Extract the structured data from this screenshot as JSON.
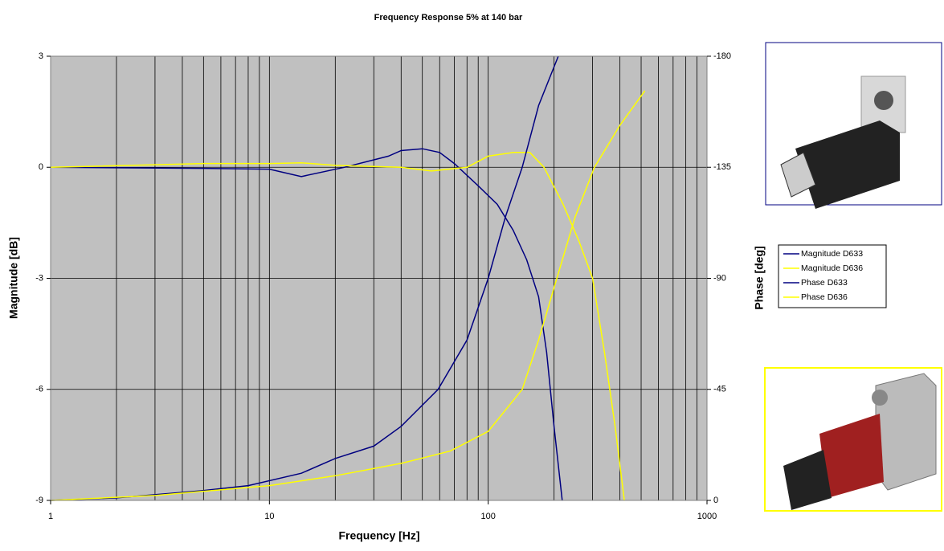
{
  "chart_data": {
    "type": "line",
    "title": "Frequency Response 5% at 140 bar",
    "x_label": "Frequency [Hz]",
    "y_label": "Magnitude [dB]",
    "y2_label": "Phase [deg]",
    "xscale": "log",
    "xlim": [
      1,
      1000
    ],
    "xticks": [
      1,
      10,
      100,
      1000
    ],
    "ylim": [
      -9,
      3
    ],
    "yticks": [
      -9,
      -6,
      -3,
      0,
      3
    ],
    "y2lim": [
      0,
      -180
    ],
    "y2ticks": [
      0,
      -45,
      -90,
      -135,
      -180
    ],
    "grid": true,
    "series": [
      {
        "name": "Magnitude D633",
        "color": "#000080",
        "x": [
          1,
          5,
          10,
          14,
          22,
          30,
          35,
          40,
          50,
          60,
          70,
          90,
          110,
          130,
          150,
          170,
          185,
          200,
          218
        ],
        "values": [
          0,
          -0.03,
          -0.05,
          -0.25,
          0,
          0.2,
          0.3,
          0.45,
          0.5,
          0.4,
          0.1,
          -0.5,
          -1,
          -1.7,
          -2.5,
          -3.5,
          -5,
          -7,
          -9
        ]
      },
      {
        "name": "Magnitude D636",
        "color": "#ffff00",
        "x": [
          1,
          5,
          10,
          14,
          20,
          40,
          55,
          80,
          100,
          130,
          155,
          180,
          220,
          260,
          300,
          340,
          380,
          419
        ],
        "values": [
          0,
          0.1,
          0.1,
          0.12,
          0.05,
          0,
          -0.1,
          0,
          0.3,
          0.4,
          0.4,
          0,
          -1,
          -2,
          -3,
          -5,
          -7,
          -9
        ]
      },
      {
        "name": "Phase D633",
        "color": "#000080",
        "axis": "y2",
        "x": [
          1,
          2,
          5,
          8,
          14,
          20,
          30,
          40,
          59,
          80,
          100,
          120,
          143,
          170,
          209
        ],
        "values": [
          0,
          -1,
          -4,
          -6,
          -11,
          -17,
          -22,
          -30,
          -45,
          -65,
          -90,
          -115,
          -135,
          -160,
          -180
        ]
      },
      {
        "name": "Phase D636",
        "color": "#ffff00",
        "axis": "y2",
        "x": [
          1,
          3,
          10,
          20,
          40,
          67,
          100,
          143,
          170,
          206,
          250,
          306,
          400,
          520
        ],
        "values": [
          0,
          -2,
          -6,
          -10,
          -15,
          -20,
          -28,
          -45,
          -65,
          -90,
          -115,
          -135,
          -152,
          -166
        ]
      }
    ]
  }
}
